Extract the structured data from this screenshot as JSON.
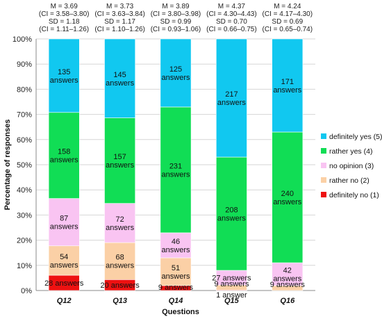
{
  "chart_data": {
    "type": "bar",
    "stacked": true,
    "normalized": true,
    "xlabel": "Questions",
    "ylabel": "Percentage of responses",
    "ylim": [
      0,
      100
    ],
    "yticks": [
      "0%",
      "10%",
      "20%",
      "30%",
      "40%",
      "50%",
      "60%",
      "70%",
      "80%",
      "90%",
      "100%"
    ],
    "categories": [
      "Q12",
      "Q13",
      "Q14",
      "Q15",
      "Q16"
    ],
    "legend_position": "right",
    "series": [
      {
        "name": "definitely no (1)",
        "color": "#ee1111",
        "values": [
          28,
          20,
          9,
          1,
          0
        ]
      },
      {
        "name": "rather no (2)",
        "color": "#fbd0a6",
        "values": [
          54,
          68,
          51,
          9,
          9
        ]
      },
      {
        "name": "no opinion (3)",
        "color": "#f9c4f2",
        "values": [
          87,
          72,
          46,
          27,
          42
        ]
      },
      {
        "name": "rather yes (4)",
        "color": "#11dd55",
        "values": [
          158,
          157,
          231,
          208,
          240
        ]
      },
      {
        "name": "definitely yes (5)",
        "color": "#11c8f0",
        "values": [
          135,
          145,
          125,
          217,
          171
        ]
      }
    ],
    "segment_labels": [
      [
        "28 answers",
        "54 answers",
        "87 answers",
        "158 answers",
        "135 answers"
      ],
      [
        "20 answers",
        "68 answers",
        "72 answers",
        "157 answers",
        "145 answers"
      ],
      [
        "9 answers",
        "51 answers",
        "46 answers",
        "231 answers",
        "125 answers"
      ],
      [
        "1 answer",
        "9 answers",
        "27 answers",
        "208 answers",
        "217 answers"
      ],
      [
        "",
        "9 answers",
        "42 answers",
        "240 answers",
        "171 answers"
      ]
    ],
    "stats": [
      [
        "M = 3.69",
        "(CI = 3.58–3.80)",
        "SD = 1.18",
        "(CI = 1.11–1.26)"
      ],
      [
        "M = 3.73",
        "(CI = 3.63–3.84)",
        "SD = 1.17",
        "(CI = 1.10–1.26)"
      ],
      [
        "M = 3.89",
        "(CI = 3.80–3.98)",
        "SD = 0.99",
        "(CI = 0.93–1.06)"
      ],
      [
        "M = 4.37",
        "(CI = 4.30–4.43)",
        "SD = 0.70",
        "(CI = 0.66–0.75)"
      ],
      [
        "M = 4.24",
        "(CI = 4.17–4.30)",
        "SD = 0.69",
        "(CI = 0.65–0.74)"
      ]
    ]
  }
}
